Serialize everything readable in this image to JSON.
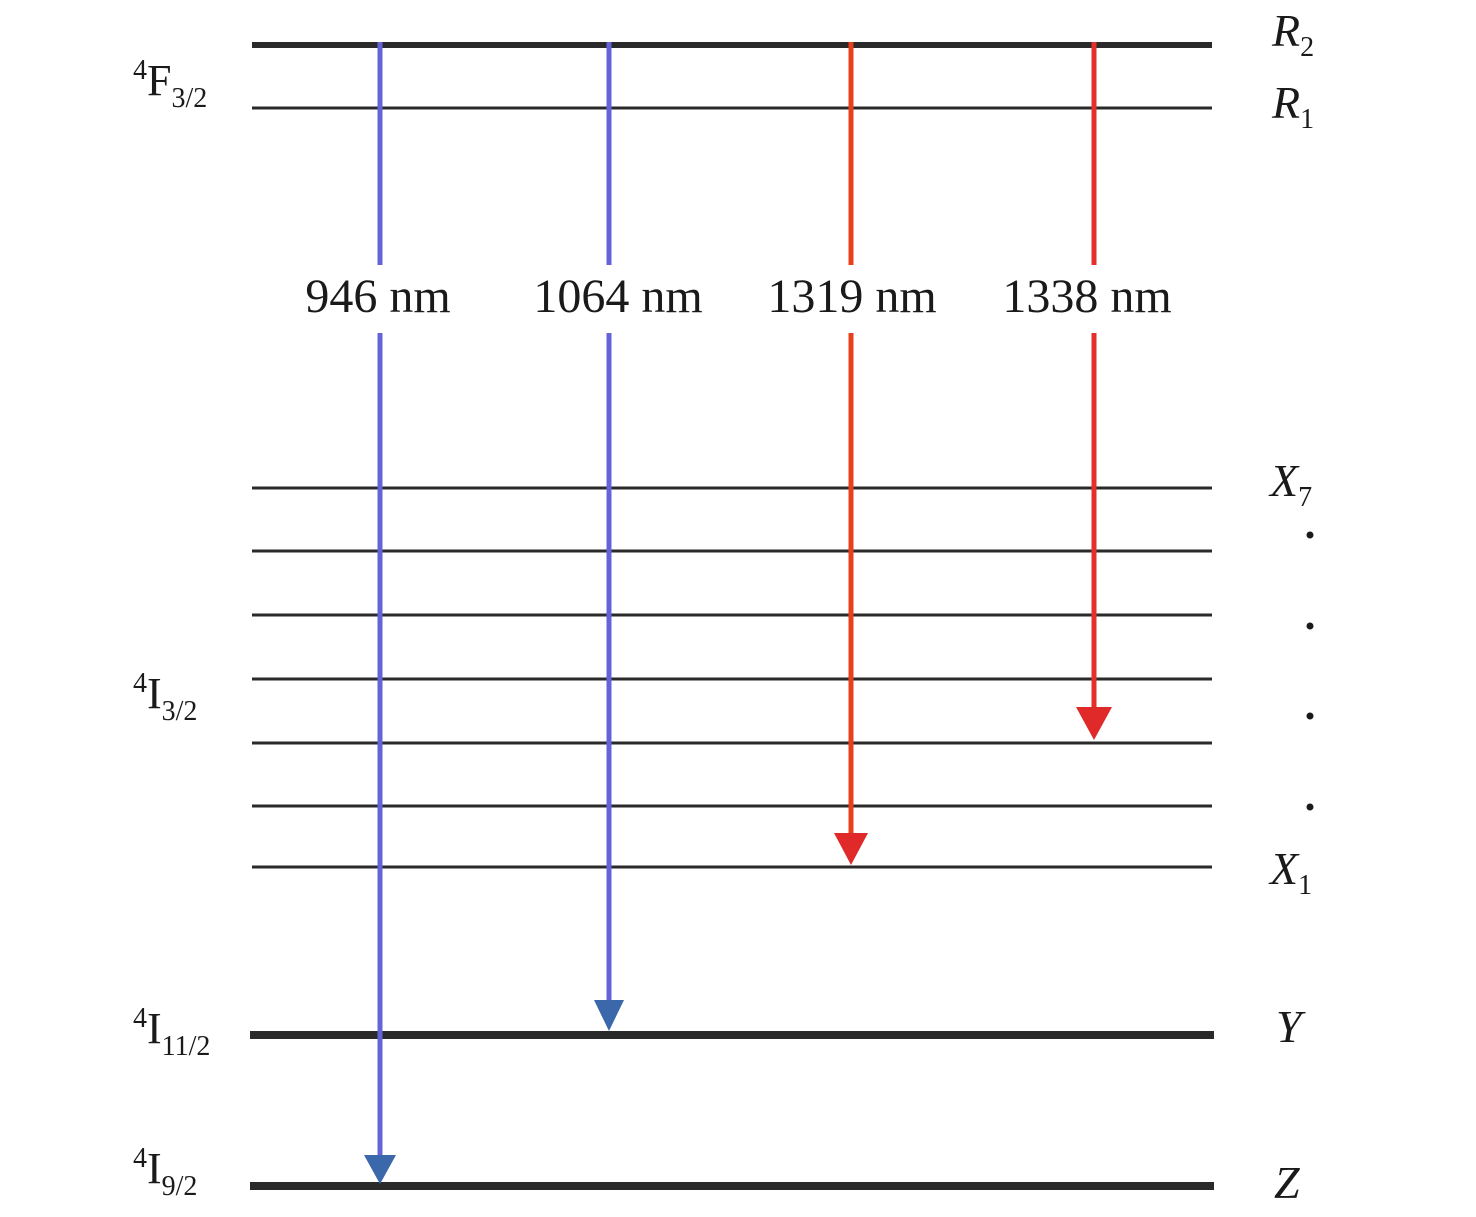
{
  "manifolds": [
    {
      "sup": "4",
      "symbol": "F",
      "sub": "3/2"
    },
    {
      "sup": "4",
      "symbol": "I",
      "sub": "3/2"
    },
    {
      "sup": "4",
      "symbol": "I",
      "sub": "11/2"
    },
    {
      "sup": "4",
      "symbol": "I",
      "sub": "9/2"
    }
  ],
  "levels": [
    {
      "symbol": "R",
      "sub": "2"
    },
    {
      "symbol": "R",
      "sub": "1"
    },
    {
      "symbol": "X",
      "sub": "7"
    },
    {
      "symbol": "X",
      "sub": "1"
    },
    {
      "symbol": "Y"
    },
    {
      "symbol": "Z"
    }
  ],
  "transitions": [
    "946 nm",
    "1064 nm",
    "1319 nm",
    "1338 nm"
  ]
}
